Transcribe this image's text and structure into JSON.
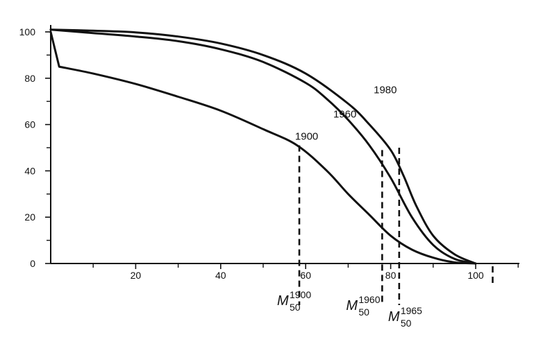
{
  "chart_data": {
    "type": "line",
    "title": "",
    "xlabel": "",
    "ylabel": "",
    "xlim": [
      0,
      112
    ],
    "ylim": [
      0,
      103
    ],
    "grid": false,
    "legend": "none",
    "color": "#111111",
    "x_ticks": [
      20,
      40,
      60,
      80,
      100
    ],
    "y_ticks": [
      0,
      20,
      40,
      60,
      80,
      100
    ],
    "x_tick_labels": [
      "20",
      "40",
      "60",
      "80",
      "100"
    ],
    "y_tick_labels": [
      "0",
      "20",
      "40",
      "60",
      "80",
      "100"
    ],
    "series": [
      {
        "name": "1900",
        "x": [
          0,
          2,
          10,
          20,
          30,
          40,
          50,
          58,
          65,
          70,
          75,
          80,
          85,
          90,
          95,
          100
        ],
        "y": [
          100,
          85,
          82,
          77.5,
          72,
          66,
          58,
          51,
          40,
          30,
          21,
          12,
          6,
          2.5,
          0.5,
          0
        ]
      },
      {
        "name": "1960",
        "x": [
          0,
          10,
          20,
          30,
          40,
          50,
          60,
          65,
          70,
          75,
          80,
          85,
          90,
          95,
          100
        ],
        "y": [
          101,
          99.5,
          98,
          96,
          92.5,
          87,
          78,
          71,
          62,
          51,
          37,
          20,
          8,
          2,
          0
        ]
      },
      {
        "name": "1980",
        "x": [
          0,
          10,
          20,
          30,
          40,
          50,
          60,
          70,
          75,
          80,
          83,
          86,
          90,
          95,
          100
        ],
        "y": [
          101,
          100.5,
          99.8,
          98,
          95,
          90,
          82,
          69,
          60,
          49,
          38,
          25,
          12,
          4,
          0
        ]
      }
    ],
    "series_labels": [
      {
        "text": "1980",
        "x": 76,
        "y": 73.5
      },
      {
        "text": "1960",
        "x": 66.5,
        "y": 63
      },
      {
        "text": "1900",
        "x": 57.5,
        "y": 53.5
      }
    ],
    "markers": [
      {
        "name": "M50 1900",
        "main": "M",
        "sub": "50",
        "sup": "1900",
        "x": 58.5,
        "y": 51
      },
      {
        "name": "M50 1960",
        "main": "M",
        "sub": "50",
        "sup": "1960",
        "x": 78,
        "y": 49
      },
      {
        "name": "M50 1965",
        "main": "M",
        "sub": "50",
        "sup": "1965",
        "x": 82,
        "y": 50
      }
    ],
    "extra_marker_x": 104
  }
}
